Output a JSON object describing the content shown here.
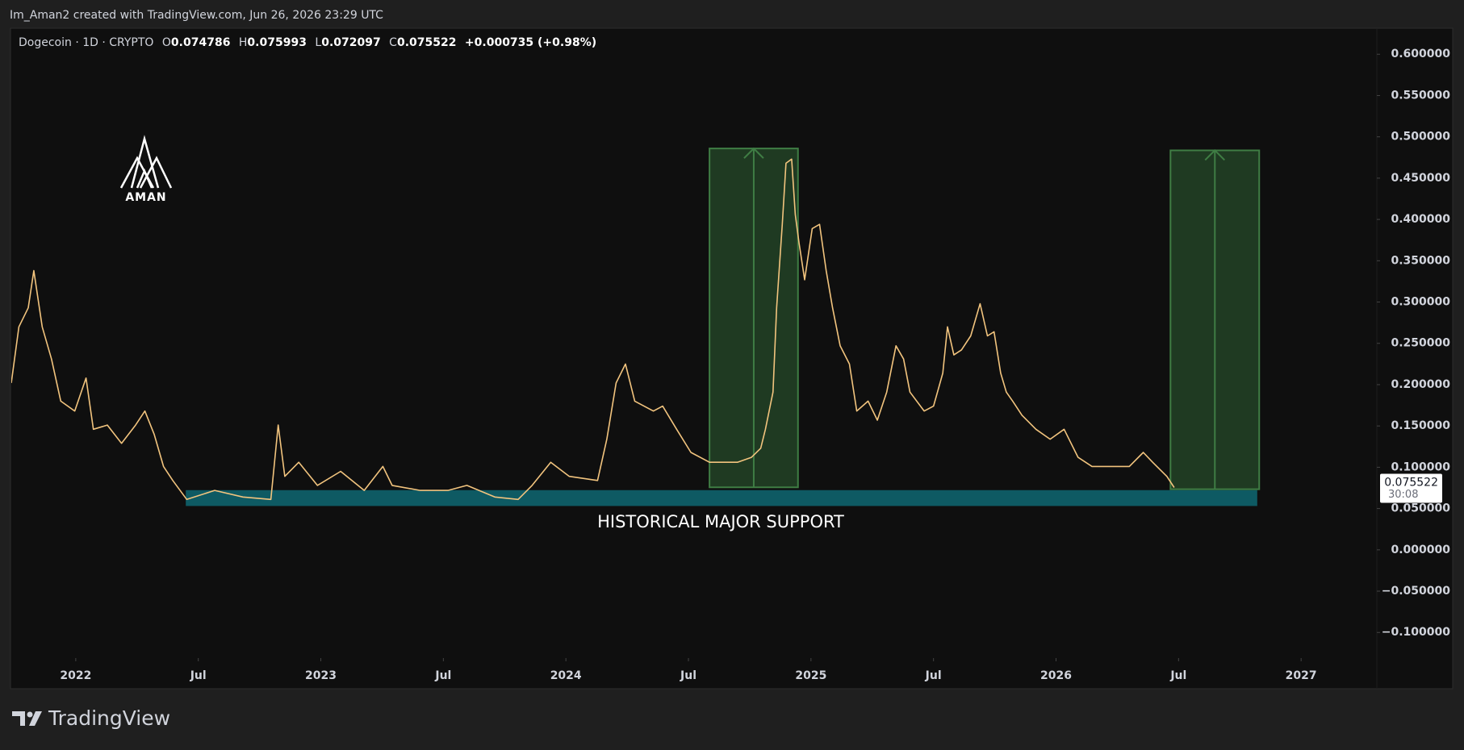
{
  "header": "Im_Aman2 created with TradingView.com, Jun 26, 2026 23:29 UTC",
  "footer": "TradingView",
  "logo": "AMAN",
  "chart_data": {
    "type": "line",
    "symbol": "Dogecoin · 1D · CRYPTO",
    "ohlc": [
      {
        "label": "O",
        "value": 0.074786
      },
      {
        "label": "H",
        "value": 0.075993
      },
      {
        "label": "L",
        "value": 0.072097
      },
      {
        "label": "C",
        "value": 0.075522
      }
    ],
    "change": "+0.000735 (+0.98%)",
    "series": [
      {
        "color": "#f2c47e",
        "x": [
          2021.737,
          2021.768,
          2021.806,
          2021.829,
          2021.863,
          2021.901,
          2021.939,
          2021.996,
          2022.042,
          2022.072,
          2022.129,
          2022.187,
          2022.244,
          2022.282,
          2022.32,
          2022.358,
          2022.396,
          2022.453,
          2022.567,
          2022.682,
          2022.796,
          2022.826,
          2022.853,
          2022.91,
          2022.986,
          2023.081,
          2023.177,
          2023.253,
          2023.291,
          2023.405,
          2023.519,
          2023.596,
          2023.71,
          2023.805,
          2023.862,
          2023.938,
          2024.014,
          2024.129,
          2024.167,
          2024.205,
          2024.243,
          2024.281,
          2024.357,
          2024.395,
          2024.452,
          2024.51,
          2024.586,
          2024.7,
          2024.757,
          2024.795,
          2024.814,
          2024.845,
          2024.86,
          2024.883,
          2024.898,
          2024.921,
          2024.936,
          2024.951,
          2024.974,
          2025.005,
          2025.035,
          2025.062,
          2025.088,
          2025.119,
          2025.157,
          2025.187,
          2025.233,
          2025.271,
          2025.309,
          2025.347,
          2025.378,
          2025.404,
          2025.462,
          2025.5,
          2025.538,
          2025.557,
          2025.583,
          2025.614,
          2025.652,
          2025.69,
          2025.72,
          2025.747,
          2025.774,
          2025.797,
          2025.823,
          2025.861,
          2025.918,
          2025.976,
          2026.033,
          2026.09,
          2026.147,
          2026.223,
          2026.299,
          2026.356,
          2026.394,
          2026.452,
          2026.482
        ],
        "values": [
          0.202,
          0.27,
          0.293,
          0.338,
          0.27,
          0.231,
          0.18,
          0.168,
          0.208,
          0.146,
          0.151,
          0.129,
          0.151,
          0.168,
          0.14,
          0.101,
          0.084,
          0.061,
          0.072,
          0.064,
          0.061,
          0.151,
          0.089,
          0.106,
          0.078,
          0.095,
          0.072,
          0.101,
          0.078,
          0.072,
          0.072,
          0.078,
          0.064,
          0.061,
          0.078,
          0.106,
          0.089,
          0.084,
          0.134,
          0.202,
          0.225,
          0.18,
          0.168,
          0.174,
          0.146,
          0.118,
          0.106,
          0.106,
          0.112,
          0.123,
          0.146,
          0.191,
          0.293,
          0.394,
          0.468,
          0.473,
          0.406,
          0.372,
          0.327,
          0.389,
          0.394,
          0.338,
          0.293,
          0.247,
          0.225,
          0.168,
          0.18,
          0.157,
          0.191,
          0.247,
          0.231,
          0.191,
          0.168,
          0.174,
          0.214,
          0.27,
          0.236,
          0.242,
          0.259,
          0.298,
          0.259,
          0.264,
          0.214,
          0.191,
          0.18,
          0.163,
          0.146,
          0.134,
          0.146,
          0.112,
          0.101,
          0.101,
          0.101,
          0.118,
          0.106,
          0.089,
          0.0755
        ]
      }
    ],
    "xlim": [
      2021.737,
      2027.309
    ],
    "xticks": [
      2022,
      {
        "value": 2022.5,
        "label": "Jul"
      },
      2023,
      {
        "value": 2023.5,
        "label": "Jul"
      },
      2024,
      {
        "value": 2024.5,
        "label": "Jul"
      },
      2025,
      {
        "value": 2025.5,
        "label": "Jul"
      },
      2026,
      {
        "value": 2026.5,
        "label": "Jul"
      },
      2027
    ],
    "ylim": [
      -0.131,
      0.6305
    ],
    "yticks": [
      {
        "value": 0.6,
        "label": "0.600000"
      },
      {
        "value": 0.55,
        "label": "0.550000"
      },
      {
        "value": 0.5,
        "label": "0.500000"
      },
      {
        "value": 0.45,
        "label": "0.450000"
      },
      {
        "value": 0.4,
        "label": "0.400000"
      },
      {
        "value": 0.35,
        "label": "0.350000"
      },
      {
        "value": 0.3,
        "label": "0.300000"
      },
      {
        "value": 0.25,
        "label": "0.250000"
      },
      {
        "value": 0.2,
        "label": "0.200000"
      },
      {
        "value": 0.15,
        "label": "0.150000"
      },
      {
        "value": 0.1,
        "label": "0.100000"
      },
      {
        "value": 0.05,
        "label": "0.050000"
      },
      {
        "value": 0,
        "label": "0.000000"
      },
      {
        "value": -0.05,
        "label": "−0.050000"
      },
      {
        "value": -0.1,
        "label": "−0.100000"
      }
    ],
    "grid": false,
    "last_price": 0.075522,
    "countdown": "30:08",
    "annotation": "HISTORICAL MAJOR SUPPORT",
    "shapes": [
      {
        "x": [
          2022.449,
          2026.821
        ],
        "y": [
          0.0531,
          0.0723
        ],
        "color": "#0e5a63"
      },
      {
        "x": [
          2024.586,
          2024.947
        ],
        "y": [
          0.0757,
          0.4859
        ],
        "color": "#1f3a22",
        "border": "#3f7d44",
        "arrow": true
      },
      {
        "x": [
          2026.467,
          2026.829
        ],
        "y": [
          0.0734,
          0.4836
        ],
        "color": "#1f3a22",
        "border": "#3f7d44",
        "arrow": true
      }
    ]
  }
}
